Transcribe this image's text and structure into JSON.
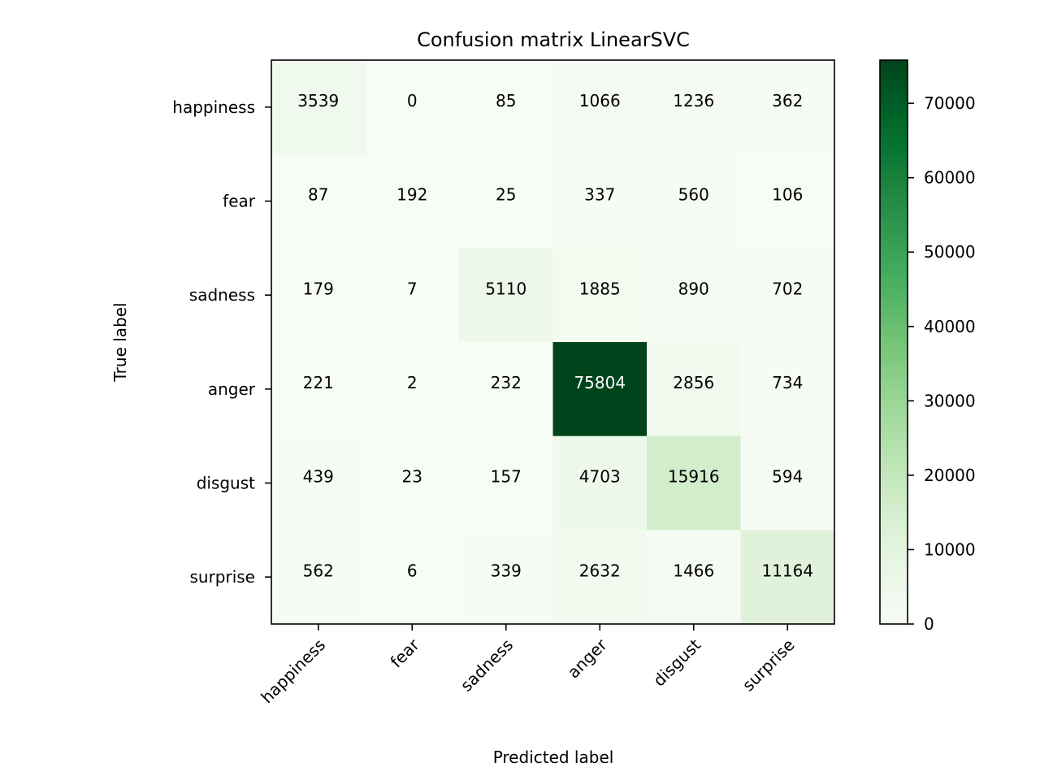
{
  "chart_data": {
    "type": "heatmap",
    "title": "Confusion matrix LinearSVC",
    "xlabel": "Predicted label",
    "ylabel": "True label",
    "x_categories": [
      "happiness",
      "fear",
      "sadness",
      "anger",
      "disgust",
      "surprise"
    ],
    "y_categories": [
      "happiness",
      "fear",
      "sadness",
      "anger",
      "disgust",
      "surprise"
    ],
    "values": [
      [
        3539,
        0,
        85,
        1066,
        1236,
        362
      ],
      [
        87,
        192,
        25,
        337,
        560,
        106
      ],
      [
        179,
        7,
        5110,
        1885,
        890,
        702
      ],
      [
        221,
        2,
        232,
        75804,
        2856,
        734
      ],
      [
        439,
        23,
        157,
        4703,
        15916,
        594
      ],
      [
        562,
        6,
        339,
        2632,
        1466,
        11164
      ]
    ],
    "colormap": "Greens",
    "colorbar": {
      "vmin": 0,
      "vmax": 75804,
      "ticks": [
        0,
        10000,
        20000,
        30000,
        40000,
        50000,
        60000,
        70000
      ],
      "tick_labels": [
        "0",
        "10000",
        "20000",
        "30000",
        "40000",
        "50000",
        "60000",
        "70000"
      ]
    },
    "x_tick_rotation": "45 degrees",
    "grid": false
  }
}
